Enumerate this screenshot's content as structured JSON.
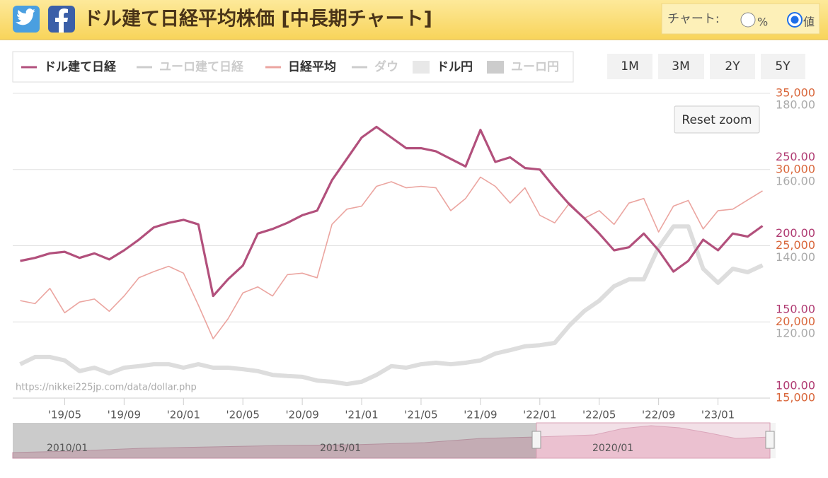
{
  "header": {
    "title": "ドル建て日経平均株価 [中長期チャート]",
    "chart_label": "チャート:",
    "options": [
      "%",
      "値"
    ]
  },
  "range_buttons": [
    "1M",
    "3M",
    "2Y",
    "5Y"
  ],
  "reset_zoom": "Reset zoom",
  "source_url": "https://nikkei225jp.com/data/dollar.php",
  "chart_data": {
    "type": "line",
    "categories": [
      null,
      null,
      null,
      "'19/05",
      null,
      null,
      null,
      "'19/09",
      null,
      null,
      null,
      "'20/01",
      null,
      null,
      null,
      "'20/05",
      null,
      null,
      null,
      "'20/09",
      null,
      null,
      null,
      "'21/01",
      null,
      null,
      null,
      "'21/05",
      null,
      null,
      null,
      "'21/09",
      null,
      null,
      null,
      "'22/01",
      null,
      null,
      null,
      "'22/05",
      null,
      null,
      null,
      "'22/09",
      null,
      null,
      null,
      "'23/01",
      null,
      null,
      null
    ],
    "series": [
      {
        "name": "ドル建て日経",
        "color": "#b2507c",
        "axis": "y",
        "visible": true,
        "values": [
          182,
          184,
          187,
          188,
          184,
          187,
          183,
          189,
          196,
          204,
          207,
          209,
          206,
          159,
          170,
          179,
          200,
          203,
          207,
          212,
          215,
          235,
          249,
          263,
          270,
          263,
          256,
          256,
          254,
          249,
          244,
          268,
          247,
          250,
          243,
          242,
          230,
          219,
          210,
          200,
          189,
          191,
          200,
          189,
          175,
          182,
          196,
          189,
          200,
          198,
          205
        ]
      },
      {
        "name": "ユーロ建て日経",
        "color": "#cccccc",
        "axis": "y",
        "visible": false,
        "values": null
      },
      {
        "name": "日経平均",
        "color": "#eba5a0",
        "axis": "y2",
        "visible": true,
        "values": [
          21400,
          21200,
          22200,
          20600,
          21300,
          21500,
          20700,
          21700,
          22900,
          23300,
          23650,
          23200,
          21100,
          18900,
          20200,
          21900,
          22300,
          21700,
          23100,
          23200,
          22900,
          26400,
          27400,
          27600,
          28900,
          29200,
          28800,
          28900,
          28800,
          27300,
          28100,
          29500,
          28900,
          27800,
          28800,
          27000,
          26500,
          27800,
          26800,
          27300,
          26400,
          27800,
          28100,
          25900,
          27600,
          27970,
          26100,
          27300,
          27400,
          28000,
          28600
        ]
      },
      {
        "name": "ダウ",
        "color": "#cccccc",
        "axis": "y",
        "visible": false,
        "values": null
      },
      {
        "name": "ドル円",
        "color": "#dddddd",
        "axis": "y3",
        "visible": true,
        "values": [
          112.0,
          113.9,
          113.9,
          113.0,
          110.2,
          111.1,
          109.6,
          111.1,
          111.5,
          112.0,
          112.0,
          111.1,
          112.0,
          111.1,
          111.1,
          110.7,
          110.2,
          109.2,
          108.9,
          108.7,
          107.7,
          107.4,
          106.8,
          107.4,
          109.2,
          111.5,
          111.1,
          112.0,
          112.4,
          112.0,
          112.4,
          113.0,
          114.8,
          115.7,
          116.7,
          117.0,
          117.6,
          122.2,
          126.0,
          128.7,
          132.5,
          134.3,
          134.3,
          142.7,
          148.2,
          148.2,
          137.1,
          133.4,
          137.1,
          136.2,
          138.0
        ]
      },
      {
        "name": "ユーロ円",
        "color": "#cccccc",
        "axis": "y3",
        "visible": false,
        "values": null
      }
    ],
    "ylim": [
      92,
      292
    ],
    "yticks": [
      {
        "value": 100,
        "label": "100.00"
      },
      {
        "value": 150,
        "label": "150.00"
      },
      {
        "value": 200,
        "label": "200.00"
      },
      {
        "value": 250,
        "label": "250.00"
      }
    ],
    "ycolor": "#b03b72",
    "y2lim": [
      15000,
      35000
    ],
    "y2ticks": [
      {
        "value": 15000,
        "label": "15,000"
      },
      {
        "value": 20000,
        "label": "20,000"
      },
      {
        "value": 25000,
        "label": "25,000"
      },
      {
        "value": 30000,
        "label": "30,000"
      },
      {
        "value": 35000,
        "label": "35,000"
      }
    ],
    "y2color": "#d9663a",
    "y3lim": [
      103.1,
      183.2
    ],
    "y3ticks": [
      {
        "value": 120,
        "label": "120.00"
      },
      {
        "value": 140,
        "label": "140.00"
      },
      {
        "value": 160,
        "label": "160.00"
      },
      {
        "value": 180,
        "label": "180.00"
      }
    ],
    "y3color": "#aaaaaa",
    "grid": true,
    "navigator_labels": [
      "2010/01",
      "2015/01",
      "2020/01"
    ]
  }
}
